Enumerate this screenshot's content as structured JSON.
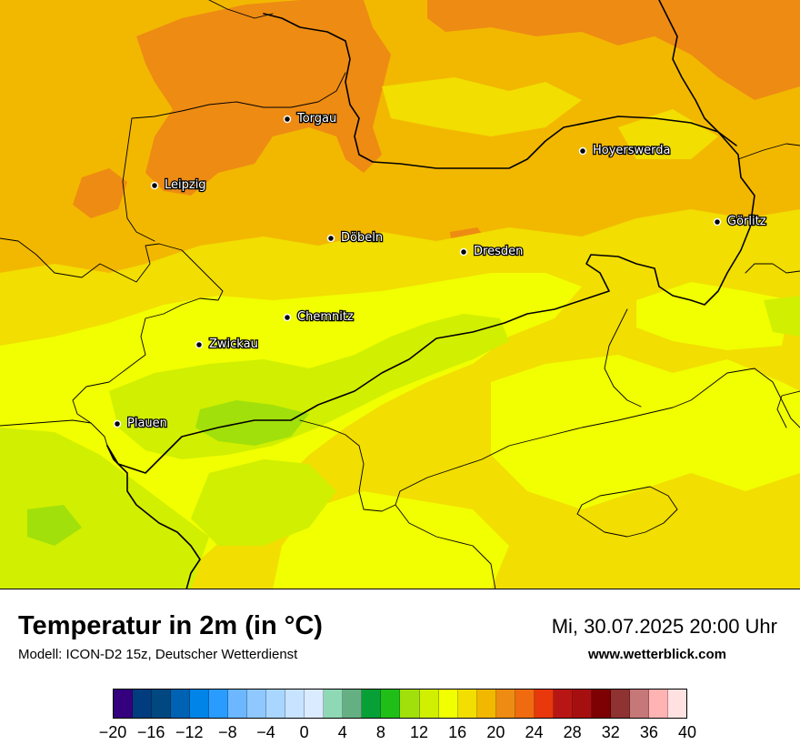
{
  "map": {
    "cities": [
      {
        "name": "Torgau"
      },
      {
        "name": "Hoyerswerda"
      },
      {
        "name": "Leipzig"
      },
      {
        "name": "Görlitz"
      },
      {
        "name": "Döbeln"
      },
      {
        "name": "Dresden"
      },
      {
        "name": "Chemnitz"
      },
      {
        "name": "Zwickau"
      },
      {
        "name": "Plauen"
      }
    ]
  },
  "footer": {
    "title": "Temperatur in 2m (in °C)",
    "subtitle": "Modell: ICON-D2 15z, Deutscher Wetterdienst",
    "datetime": "Mi, 30.07.2025 20:00 Uhr",
    "website": "www.wetterblick.com"
  },
  "legend": {
    "colors": [
      "#34007e",
      "#003c7e",
      "#00487f",
      "#0062b2",
      "#0084e8",
      "#2a9cff",
      "#6cb7ff",
      "#8ec8ff",
      "#a9d6ff",
      "#c7e3ff",
      "#daeaff",
      "#8ed8b5",
      "#65b083",
      "#07a036",
      "#20bf17",
      "#a1e00b",
      "#d1ef00",
      "#f1ff00",
      "#f2de00",
      "#f2b800",
      "#ee8b13",
      "#f06b0f",
      "#e8380c",
      "#b81614",
      "#a60f10",
      "#7d0102",
      "#8e3232",
      "#c67777",
      "#ffb3b3",
      "#ffe1e1"
    ],
    "ticks": [
      "−20",
      "−16",
      "−12",
      "−8",
      "−4",
      "0",
      "4",
      "8",
      "12",
      "16",
      "20",
      "24",
      "28",
      "32",
      "36",
      "40"
    ]
  }
}
